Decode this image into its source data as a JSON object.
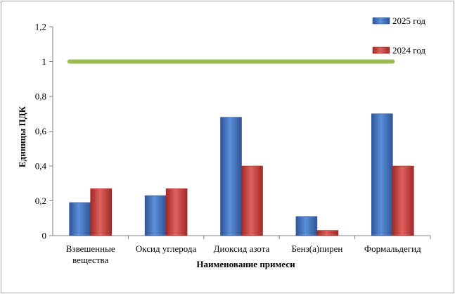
{
  "chart_data": {
    "type": "bar",
    "categories": [
      [
        "Взвешенные",
        "вещества"
      ],
      [
        "Оксид углерода"
      ],
      [
        "Диоксид азота"
      ],
      [
        "Бенз(а)пирен"
      ],
      [
        "Формальдегид"
      ]
    ],
    "series": [
      {
        "name": "2025 год",
        "values": [
          0.19,
          0.23,
          0.68,
          0.11,
          0.7
        ],
        "color": "#4472c4"
      },
      {
        "name": "2024 год",
        "values": [
          0.27,
          0.27,
          0.4,
          0.03,
          0.4
        ],
        "color": "#c0504d"
      }
    ],
    "reference_line": {
      "value": 1.0,
      "color": "#9bbb59"
    },
    "xlabel": "Наименование примеси",
    "ylabel": "Единицы ПДК",
    "ylim": [
      0,
      1.2
    ],
    "yticks": [
      {
        "value": 0,
        "label": "0"
      },
      {
        "value": 0.2,
        "label": "0,2"
      },
      {
        "value": 0.4,
        "label": "0,4"
      },
      {
        "value": 0.6,
        "label": "0,6"
      },
      {
        "value": 0.8,
        "label": "0,8"
      },
      {
        "value": 1.0,
        "label": "1"
      },
      {
        "value": 1.2,
        "label": "1,2"
      }
    ],
    "grid": false,
    "legend_position": "top-right"
  }
}
